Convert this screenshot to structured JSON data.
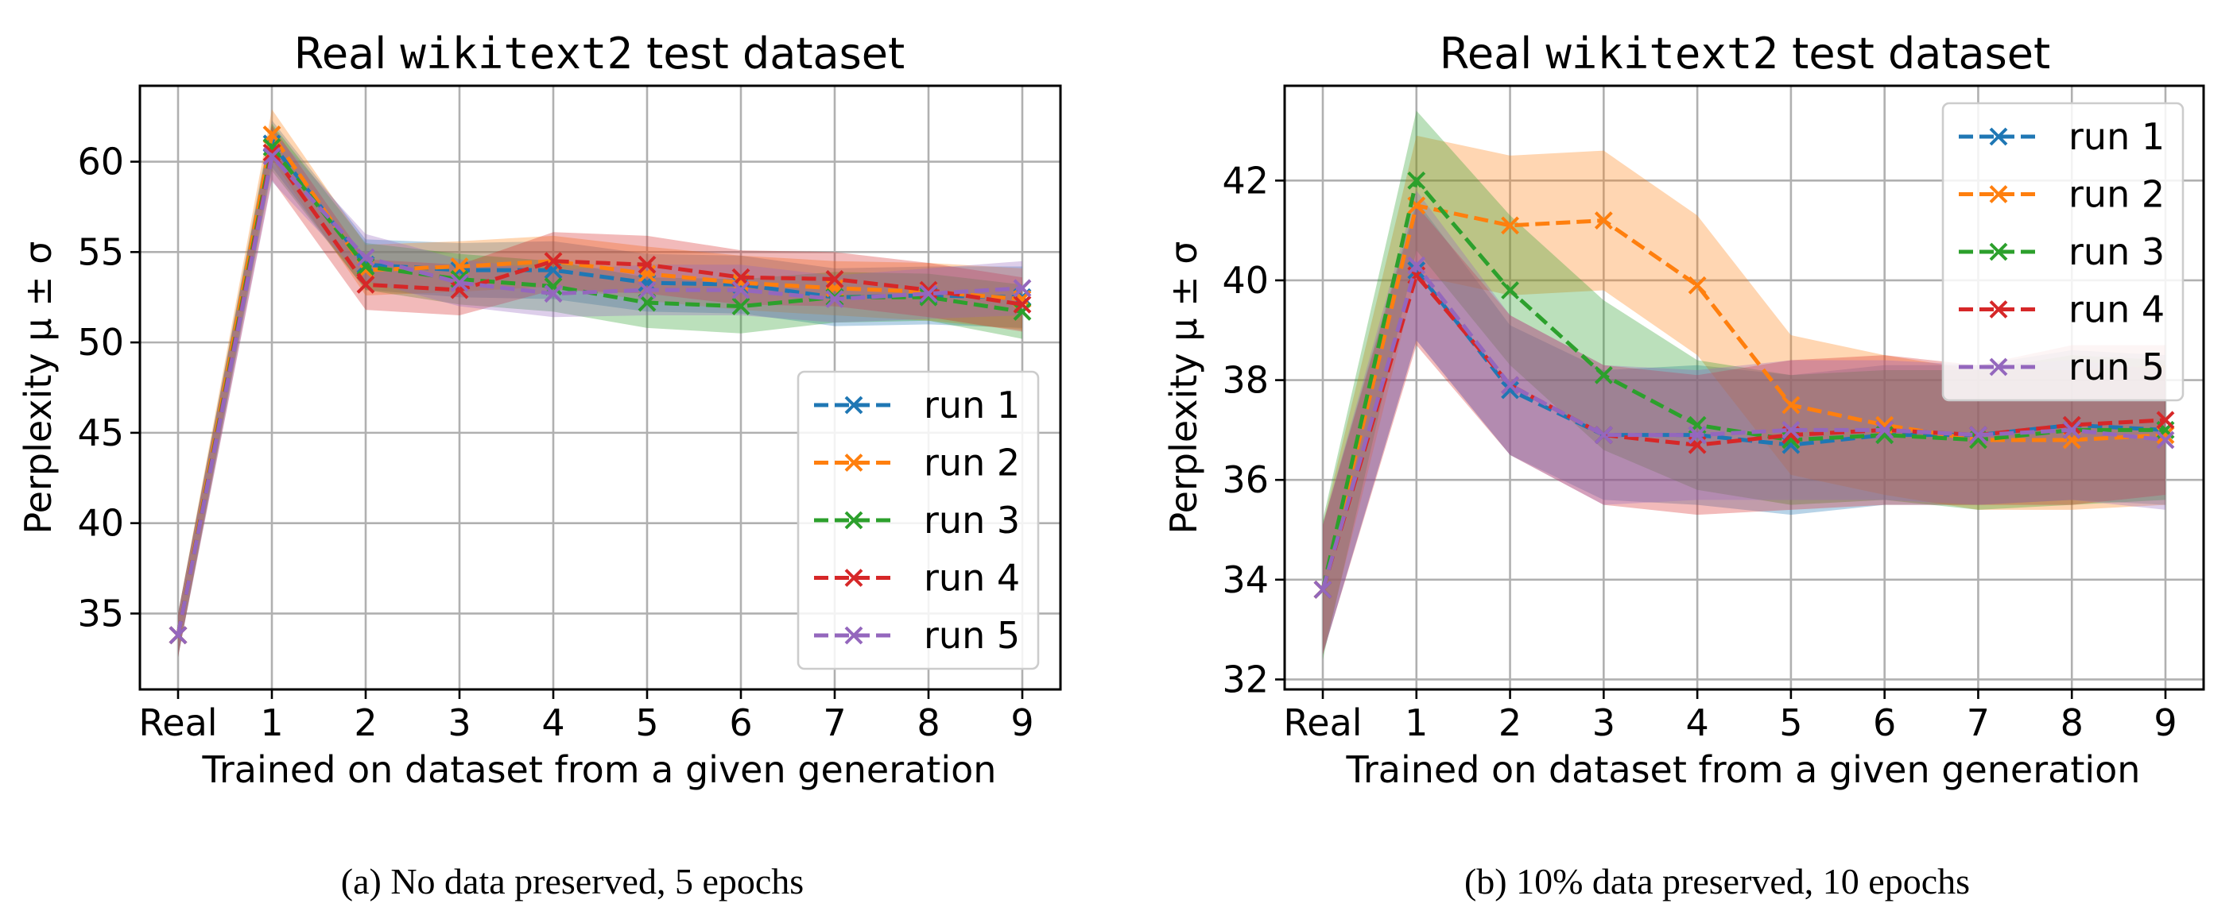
{
  "chart_data": [
    {
      "type": "line",
      "panel": "a",
      "title_prefix": "Real ",
      "title_mono": "wikitext2",
      "title_suffix": " test dataset",
      "caption": "(a) No data preserved, 5 epochs",
      "xlabel": "Trained on dataset from a given generation",
      "ylabel": "Perplexity μ ± σ",
      "categories": [
        "Real",
        "1",
        "2",
        "3",
        "4",
        "5",
        "6",
        "7",
        "8",
        "9"
      ],
      "ylim": [
        30.8,
        64.2
      ],
      "yticks": [
        35,
        40,
        45,
        50,
        55,
        60
      ],
      "ytick_labels": [
        "35",
        "40",
        "45",
        "50",
        "55",
        "60"
      ],
      "grid": true,
      "legend_position": "lower-right",
      "series": [
        {
          "name": "run 1",
          "color": "#1f77b4",
          "values": [
            33.8,
            61.0,
            54.3,
            54.0,
            54.0,
            53.3,
            53.2,
            52.5,
            52.6,
            52.5
          ],
          "std": [
            1.2,
            1.3,
            1.4,
            1.5,
            1.6,
            1.6,
            1.6,
            1.6,
            1.6,
            1.7
          ]
        },
        {
          "name": "run 2",
          "color": "#ff7f0e",
          "values": [
            33.8,
            61.5,
            54.0,
            54.2,
            54.5,
            53.8,
            53.3,
            53.0,
            52.8,
            52.4
          ],
          "std": [
            1.2,
            1.4,
            1.4,
            1.4,
            1.4,
            1.5,
            1.5,
            1.5,
            1.6,
            1.7
          ]
        },
        {
          "name": "run 3",
          "color": "#2ca02c",
          "values": [
            33.8,
            60.8,
            54.2,
            53.5,
            53.1,
            52.2,
            52.0,
            52.5,
            52.5,
            51.7
          ],
          "std": [
            1.2,
            1.3,
            1.3,
            1.4,
            1.4,
            1.4,
            1.5,
            1.4,
            1.3,
            1.5
          ]
        },
        {
          "name": "run 4",
          "color": "#d62728",
          "values": [
            33.8,
            60.5,
            53.2,
            52.9,
            54.5,
            54.3,
            53.6,
            53.5,
            52.9,
            52.1
          ],
          "std": [
            1.2,
            1.5,
            1.4,
            1.4,
            1.6,
            1.6,
            1.5,
            1.5,
            1.5,
            1.5
          ]
        },
        {
          "name": "run 5",
          "color": "#9467bd",
          "values": [
            33.8,
            60.3,
            54.7,
            53.3,
            52.7,
            52.9,
            52.9,
            52.4,
            52.7,
            53.0
          ],
          "std": [
            1.2,
            1.4,
            1.3,
            1.3,
            1.3,
            1.4,
            1.4,
            1.3,
            1.4,
            1.5
          ]
        }
      ]
    },
    {
      "type": "line",
      "panel": "b",
      "title_prefix": "Real ",
      "title_mono": "wikitext2",
      "title_suffix": " test dataset",
      "caption": "(b) 10% data preserved, 10 epochs",
      "xlabel": "Trained on dataset from a given generation",
      "ylabel": "Perplexity μ ± σ",
      "categories": [
        "Real",
        "1",
        "2",
        "3",
        "4",
        "5",
        "6",
        "7",
        "8",
        "9"
      ],
      "ylim": [
        31.8,
        43.9
      ],
      "yticks": [
        32,
        34,
        36,
        38,
        40,
        42
      ],
      "ytick_labels": [
        "32",
        "34",
        "36",
        "38",
        "40",
        "42"
      ],
      "grid": true,
      "legend_position": "upper-right",
      "series": [
        {
          "name": "run 1",
          "color": "#1f77b4",
          "values": [
            33.8,
            40.2,
            37.8,
            36.9,
            36.9,
            36.7,
            36.9,
            36.9,
            37.1,
            37.0
          ],
          "std": [
            1.3,
            1.4,
            1.3,
            1.3,
            1.4,
            1.4,
            1.4,
            1.4,
            1.5,
            1.5
          ]
        },
        {
          "name": "run 2",
          "color": "#ff7f0e",
          "values": [
            33.8,
            41.5,
            41.1,
            41.2,
            39.9,
            37.5,
            37.1,
            36.8,
            36.8,
            36.9
          ],
          "std": [
            1.3,
            1.4,
            1.4,
            1.4,
            1.4,
            1.4,
            1.4,
            1.4,
            1.4,
            1.4
          ]
        },
        {
          "name": "run 3",
          "color": "#2ca02c",
          "values": [
            33.8,
            42.0,
            39.8,
            38.1,
            37.1,
            36.8,
            36.9,
            36.8,
            37.0,
            37.0
          ],
          "std": [
            1.4,
            1.4,
            1.5,
            1.5,
            1.3,
            1.3,
            1.3,
            1.4,
            1.5,
            1.4
          ]
        },
        {
          "name": "run 4",
          "color": "#d62728",
          "values": [
            33.8,
            40.1,
            37.9,
            36.9,
            36.7,
            36.9,
            37.0,
            36.9,
            37.1,
            37.2
          ],
          "std": [
            1.3,
            1.4,
            1.4,
            1.4,
            1.4,
            1.5,
            1.5,
            1.4,
            1.6,
            1.5
          ]
        },
        {
          "name": "run 5",
          "color": "#9467bd",
          "values": [
            33.8,
            40.3,
            37.9,
            36.9,
            36.9,
            37.0,
            37.0,
            36.9,
            37.0,
            36.8
          ],
          "std": [
            1.3,
            1.5,
            1.4,
            1.4,
            1.3,
            1.4,
            1.4,
            1.4,
            1.4,
            1.4
          ]
        }
      ]
    }
  ]
}
